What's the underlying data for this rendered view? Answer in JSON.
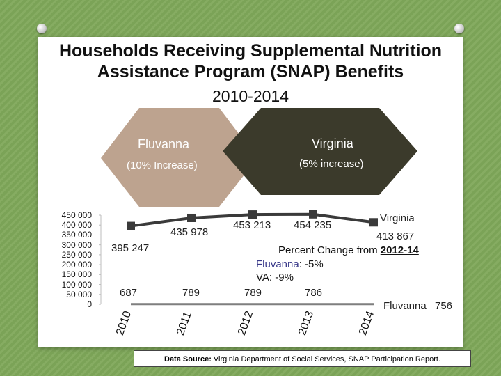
{
  "slide": {
    "title_line1": "Households Receiving Supplemental Nutrition",
    "title_line2": "Assistance Program (SNAP) Benefits",
    "subtitle": "2010-2014"
  },
  "hexagons": {
    "fluvanna_name": "Fluvanna",
    "fluvanna_change": "(10% Increase)",
    "fluvanna_color": "#bda38f",
    "virginia_name": "Virginia",
    "virginia_change": "(5% increase)",
    "virginia_color": "#3b3a2b"
  },
  "callout": {
    "title_prefix": "Percent Change from ",
    "title_years": "2012-14",
    "fluvanna_label": "Fluvanna",
    "fluvanna_value": ": -5%",
    "va_label": "VA:",
    "va_value": " -9%"
  },
  "source": {
    "label": "Data Source:",
    "text": " Virginia Department of Social Services, SNAP Participation Report."
  },
  "chart_data": {
    "type": "line",
    "categories": [
      "2010",
      "2011",
      "2012",
      "2013",
      "2014"
    ],
    "ylim": [
      0,
      450000
    ],
    "yticks": [
      "450 000",
      "400 000",
      "350 000",
      "300 000",
      "250 000",
      "200 000",
      "150 000",
      "100 000",
      "50 000",
      "0"
    ],
    "series": [
      {
        "name": "Virginia",
        "values": [
          395247,
          435978,
          453213,
          454235,
          413867
        ],
        "labels": [
          "395 247",
          "435 978",
          "453 213",
          "454 235",
          "413 867"
        ],
        "color": "#3a3a3a"
      },
      {
        "name": "Fluvanna",
        "values": [
          687,
          789,
          789,
          786,
          756
        ],
        "labels": [
          "687",
          "789",
          "789",
          "786",
          "756"
        ],
        "color": "#7f7f7f"
      }
    ],
    "annotations": {
      "virginia_end_name": "Virginia",
      "fluvanna_end_name": "Fluvanna"
    }
  }
}
